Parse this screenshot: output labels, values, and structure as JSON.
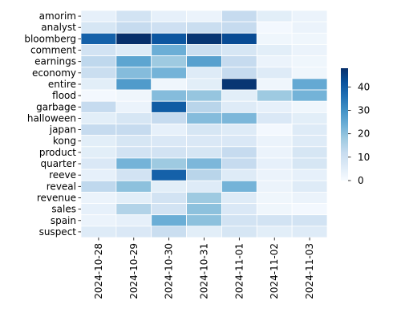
{
  "chart_data": {
    "type": "heatmap",
    "title": "",
    "xlabel": "",
    "ylabel": "",
    "x": [
      "2024-10-28",
      "2024-10-29",
      "2024-10-30",
      "2024-10-31",
      "2024-11-01",
      "2024-11-02",
      "2024-11-03"
    ],
    "y": [
      "amorim",
      "analyst",
      "bloomberg",
      "comment",
      "earnings",
      "economy",
      "entire",
      "flood",
      "garbage",
      "halloween",
      "japan",
      "kong",
      "product",
      "quarter",
      "reeve",
      "reveal",
      "revenue",
      "sales",
      "spain",
      "suspect"
    ],
    "values": [
      [
        4,
        9,
        4,
        3,
        12,
        5,
        3
      ],
      [
        8,
        12,
        10,
        11,
        12,
        1,
        3
      ],
      [
        39,
        48,
        41,
        47,
        43,
        2,
        2
      ],
      [
        9,
        6,
        24,
        11,
        8,
        5,
        3
      ],
      [
        13,
        26,
        18,
        27,
        12,
        3,
        2
      ],
      [
        11,
        21,
        23,
        6,
        12,
        6,
        2
      ],
      [
        5,
        28,
        2,
        5,
        47,
        2,
        25
      ],
      [
        1,
        2,
        21,
        19,
        5,
        18,
        23
      ],
      [
        12,
        3,
        40,
        14,
        6,
        4,
        2
      ],
      [
        5,
        8,
        12,
        21,
        22,
        7,
        5
      ],
      [
        12,
        12,
        4,
        8,
        6,
        1,
        6
      ],
      [
        5,
        8,
        7,
        7,
        7,
        3,
        6
      ],
      [
        5,
        9,
        9,
        8,
        12,
        3,
        8
      ],
      [
        7,
        23,
        18,
        22,
        12,
        4,
        8
      ],
      [
        4,
        9,
        39,
        14,
        6,
        3,
        4
      ],
      [
        13,
        20,
        5,
        6,
        23,
        3,
        6
      ],
      [
        3,
        5,
        9,
        18,
        6,
        2,
        3
      ],
      [
        4,
        15,
        9,
        20,
        7,
        2,
        1
      ],
      [
        3,
        4,
        24,
        20,
        9,
        9,
        9
      ],
      [
        6,
        7,
        11,
        5,
        8,
        5,
        6
      ]
    ],
    "vmin": 0,
    "vmax": 48,
    "colorbar_ticks": [
      0,
      10,
      20,
      30,
      40
    ],
    "colormap": "Blues",
    "cell_border_color": "#ffffff",
    "grid": false,
    "legend": "colorbar-right"
  }
}
